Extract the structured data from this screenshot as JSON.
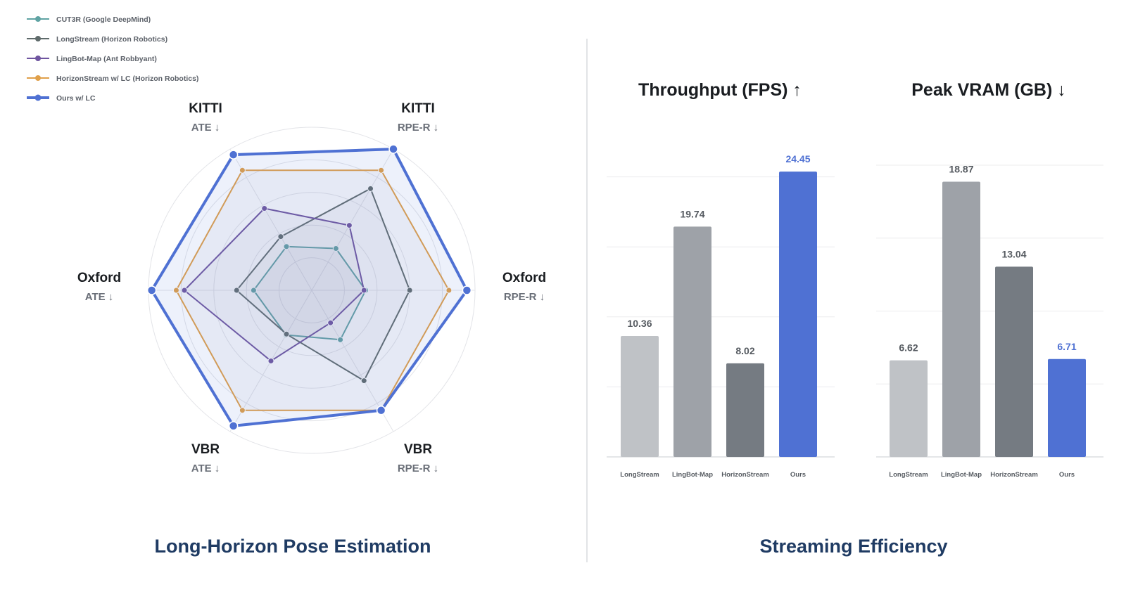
{
  "radar": {
    "chart_data": {
      "type": "radar",
      "title": "Long-Horizon Pose Estimation",
      "axes": [
        {
          "name": "KITTI",
          "metric": "ATE ↓"
        },
        {
          "name": "KITTI",
          "metric": "RPE-R ↓"
        },
        {
          "name": "Oxford",
          "metric": "RPE-R ↓"
        },
        {
          "name": "VBR",
          "metric": "RPE-R ↓"
        },
        {
          "name": "VBR",
          "metric": "ATE ↓"
        },
        {
          "name": "Oxford",
          "metric": "ATE ↓"
        }
      ],
      "rmax": 5,
      "grid_rings": 5,
      "legend_position": "top-left",
      "series": [
        {
          "name": "CUT3R (Google DeepMind)",
          "color": "#5fa3a3",
          "values": [
            1.55,
            1.48,
            1.65,
            1.75,
            1.58,
            1.78
          ]
        },
        {
          "name": "LongStream (Horizon Robotics)",
          "color": "#5f6b6b",
          "values": [
            1.9,
            3.6,
            3.0,
            3.2,
            1.55,
            2.3
          ]
        },
        {
          "name": "LingBot-Map (Ant Robbyant)",
          "color": "#6f55a0",
          "values": [
            2.9,
            2.3,
            1.6,
            1.15,
            2.5,
            3.9
          ]
        },
        {
          "name": "HorizonStream w/ LC (Horizon Robotics)",
          "color": "#e0a04a",
          "values": [
            4.25,
            4.25,
            4.2,
            4.25,
            4.25,
            4.15
          ]
        },
        {
          "name": "Ours w/ LC",
          "color": "#4f71d3",
          "values": [
            4.8,
            5.0,
            4.75,
            4.25,
            4.8,
            4.9
          ]
        }
      ]
    }
  },
  "right_title": "Streaming Efficiency",
  "bars": {
    "chart_data": [
      {
        "type": "bar",
        "title": "Throughput (FPS) ↑",
        "categories": [
          "LongStream",
          "LingBot-Map",
          "HorizonStream",
          "Ours"
        ],
        "values": [
          10.36,
          19.74,
          8.02,
          24.45
        ],
        "value_labels": [
          "10.36",
          "19.74",
          "8.02",
          "24.45"
        ],
        "colors": [
          "#bfc2c6",
          "#9ea2a8",
          "#757b82",
          "#4f71d3"
        ],
        "label_colors": [
          "#555a60",
          "#555a60",
          "#555a60",
          "#4f71d3"
        ],
        "ylim": [
          0,
          24
        ],
        "grid": true
      },
      {
        "type": "bar",
        "title": "Peak VRAM (GB) ↓",
        "categories": [
          "LongStream",
          "LingBot-Map",
          "HorizonStream",
          "Ours"
        ],
        "values": [
          6.62,
          18.87,
          13.04,
          6.71
        ],
        "value_labels": [
          "6.62",
          "18.87",
          "13.04",
          "6.71"
        ],
        "colors": [
          "#bfc2c6",
          "#9ea2a8",
          "#757b82",
          "#4f71d3"
        ],
        "label_colors": [
          "#555a60",
          "#555a60",
          "#555a60",
          "#4f71d3"
        ],
        "ylim": [
          0,
          20
        ],
        "grid": true
      }
    ]
  }
}
